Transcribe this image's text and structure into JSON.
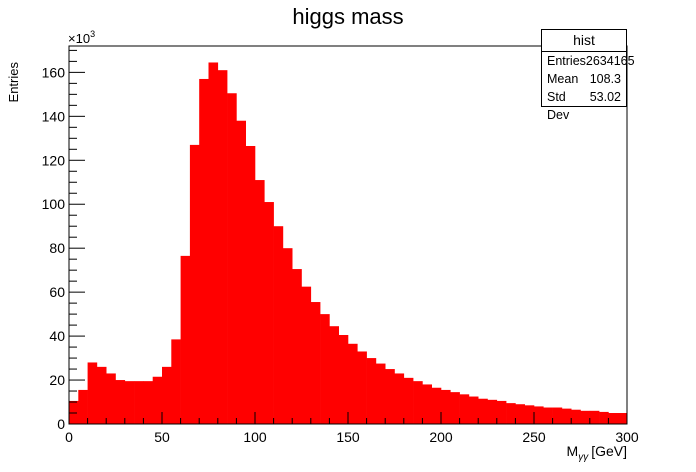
{
  "chart_data": {
    "type": "bar",
    "title": "higgs mass",
    "xlabel": "M",
    "xlabel_sub": "γγ",
    "xlabel_unit": "[GeV]",
    "ylabel": "Entries",
    "y_multiplier": "×10",
    "y_multiplier_exp": "3",
    "xlim": [
      0,
      300
    ],
    "ylim": [
      0,
      172
    ],
    "bin_width": 5,
    "x_ticks": [
      0,
      50,
      100,
      150,
      200,
      250,
      300
    ],
    "x_tick_labels": [
      "0",
      "50",
      "100",
      "150",
      "200",
      "250",
      "300"
    ],
    "y_ticks": [
      0,
      20,
      40,
      60,
      80,
      100,
      120,
      140,
      160
    ],
    "y_tick_labels": [
      "0",
      "20",
      "40",
      "60",
      "80",
      "100",
      "120",
      "140",
      "160"
    ],
    "fill_color": "#ff0000",
    "values": [
      10.5,
      15.5,
      28,
      26,
      23,
      20,
      19.5,
      19.5,
      19.5,
      21.5,
      26,
      38.5,
      76.5,
      127,
      157,
      164.5,
      161,
      150.5,
      138,
      126.5,
      111,
      101,
      90,
      80,
      70.5,
      62.5,
      55.5,
      50,
      44.5,
      40.5,
      36.5,
      33,
      30,
      27.5,
      25,
      23,
      21,
      19.5,
      18,
      16.5,
      15.5,
      14.5,
      13.5,
      12.5,
      11.5,
      11,
      10.5,
      9.5,
      9,
      8.5,
      8,
      7.5,
      7.5,
      7,
      6.5,
      6,
      6,
      5.5,
      5,
      5
    ],
    "legend": "top-right"
  },
  "stats": {
    "title": "hist",
    "rows": [
      {
        "label": "Entries",
        "value": "2634165"
      },
      {
        "label": "Mean",
        "value": "108.3"
      },
      {
        "label": "Std Dev",
        "value": "53.02"
      }
    ]
  }
}
